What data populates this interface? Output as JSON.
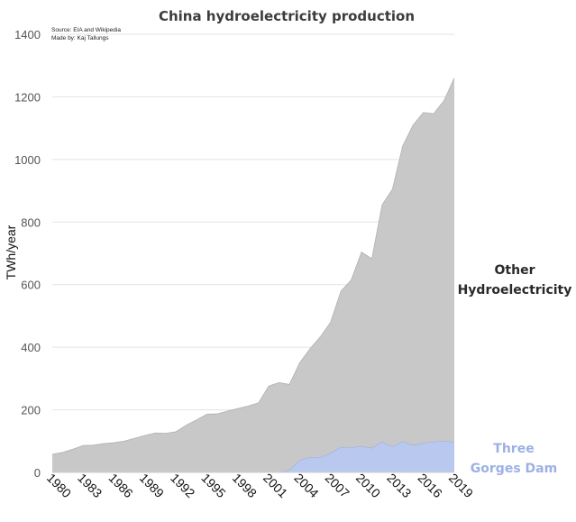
{
  "chart_data": {
    "type": "area",
    "title": "China hydroelectricity production",
    "source_note": "Source: EIA and Wikipedia",
    "author_note": "Made by: Kaj Tallungs",
    "xlabel": "",
    "ylabel": "TWh/year",
    "ylim": [
      0,
      1400
    ],
    "yticks": [
      0,
      200,
      400,
      600,
      800,
      1000,
      1200,
      1400
    ],
    "xlim": [
      1980,
      2019
    ],
    "xtick_labels": [
      "1980",
      "1983",
      "1986",
      "1989",
      "1992",
      "1995",
      "1998",
      "2001",
      "2004",
      "2007",
      "2010",
      "2013",
      "2016",
      "2019"
    ],
    "grid": true,
    "stacked": true,
    "x": [
      1980,
      1981,
      1982,
      1983,
      1984,
      1985,
      1986,
      1987,
      1988,
      1989,
      1990,
      1991,
      1992,
      1993,
      1994,
      1995,
      1996,
      1997,
      1998,
      1999,
      2000,
      2001,
      2002,
      2003,
      2004,
      2005,
      2006,
      2007,
      2008,
      2009,
      2010,
      2011,
      2012,
      2013,
      2014,
      2015,
      2016,
      2017,
      2018,
      2019
    ],
    "series": [
      {
        "name": "Three Gorges Dam",
        "label_lines": [
          "Three",
          "Gorges Dam"
        ],
        "color": "#b8c8ee",
        "edge_color": "#8fa6db",
        "values": [
          0,
          0,
          0,
          0,
          0,
          0,
          0,
          0,
          0,
          0,
          0,
          0,
          0,
          0,
          0,
          0,
          0,
          0,
          0,
          0,
          0,
          0,
          0,
          8,
          39,
          49,
          49,
          62,
          81,
          80,
          84,
          78,
          98,
          83,
          99,
          87,
          94,
          98,
          101,
          97
        ]
      },
      {
        "name": "Other Hydroelectricity",
        "label_lines": [
          "Other",
          "Hydroelectricity"
        ],
        "color": "#c8c8c8",
        "edge_color": "#b0b0b0",
        "values": [
          58,
          64,
          74,
          86,
          87,
          92,
          95,
          100,
          109,
          118,
          126,
          125,
          130,
          151,
          168,
          186,
          187,
          196,
          204,
          212,
          222,
          276,
          287,
          273,
          311,
          346,
          384,
          418,
          498,
          535,
          620,
          605,
          757,
          822,
          945,
          1023,
          1056,
          1048,
          1087,
          1163
        ]
      }
    ]
  }
}
